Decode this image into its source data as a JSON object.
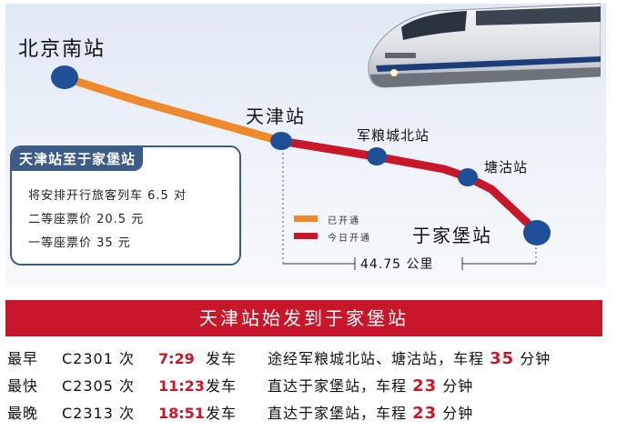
{
  "map": {
    "stations": {
      "beijing_south": "北京南站",
      "tianjin": "天津站",
      "junliangcheng_north": "军粮城北站",
      "tanggu": "塘沽站",
      "yujiapu": "于家堡站"
    },
    "legend": {
      "opened": "已开通",
      "opened_color": "#ee8a2c",
      "today": "今日开通",
      "today_color": "#c8172b"
    },
    "distance": "44.75 公里"
  },
  "info_box": {
    "title": "天津站至于家堡站",
    "lines": [
      "将安排开行旅客列车 6.5 对",
      "二等座票价 20.5 元",
      "一等座票价 35 元"
    ]
  },
  "schedule": {
    "title": "天津站始发到于家堡站",
    "rows": [
      {
        "label": "最早",
        "train": "C2301 次",
        "time": "7:29",
        "depart": "发车",
        "info_pre": "途经军粮城北站、塘沽站，车程 ",
        "info_num": "35",
        "info_post": " 分钟"
      },
      {
        "label": "最快",
        "train": "C2305 次",
        "time": "11:23",
        "depart": "发车",
        "info_pre": "直达于家堡站，车程 ",
        "info_num": "23",
        "info_post": " 分钟"
      },
      {
        "label": "最晚",
        "train": "C2313 次",
        "time": "18:51",
        "depart": "发车",
        "info_pre": "直达于家堡站，车程 ",
        "info_num": "23",
        "info_post": " 分钟"
      }
    ]
  },
  "colors": {
    "accent_red": "#c8172b",
    "node_blue": "#1f4f96",
    "panel_blue": "#3c5b86"
  }
}
